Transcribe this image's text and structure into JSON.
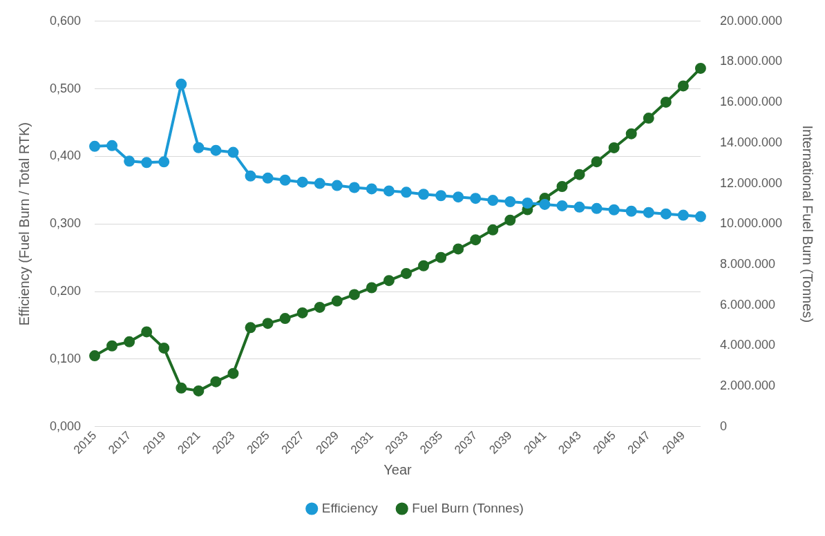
{
  "chart_data": {
    "type": "line",
    "xlabel": "Year",
    "ylabel": "Efficiency (Fuel Burn / Total RTK)",
    "y2label": "International Fuel Burn (Tonnes)",
    "categories": [
      "2015",
      null,
      "2017",
      null,
      "2019",
      null,
      "2021",
      null,
      "2023",
      null,
      "2025",
      null,
      "2027",
      null,
      "2029",
      null,
      "2031",
      null,
      "2033",
      null,
      "2035",
      null,
      "2037",
      null,
      "2039",
      null,
      "2041",
      null,
      "2043",
      null,
      "2045",
      null,
      "2047",
      null,
      "2049",
      null
    ],
    "series": [
      {
        "name": "Efficiency",
        "color": "#1b9ad6",
        "values": [
          0.415,
          0.416,
          0.393,
          0.391,
          0.392,
          0.507,
          0.413,
          0.409,
          0.406,
          0.371,
          0.368,
          0.365,
          0.362,
          0.36,
          0.357,
          0.354,
          0.352,
          0.349,
          0.347,
          0.344,
          0.342,
          0.34,
          0.338,
          0.335,
          0.333,
          0.331,
          0.329,
          0.327,
          0.325,
          0.323,
          0.321,
          0.319,
          0.317,
          0.315,
          0.313,
          0.311
        ]
      },
      {
        "name": "Fuel Burn (Tonnes)",
        "color": "#1e6b23",
        "axis": "y2",
        "values": [
          3500000,
          3990000,
          4190000,
          4680000,
          3880000,
          1910000,
          1770000,
          2220000,
          2630000,
          4890000,
          5100000,
          5340000,
          5620000,
          5890000,
          6200000,
          6520000,
          6860000,
          7210000,
          7560000,
          7940000,
          8350000,
          8770000,
          9220000,
          9710000,
          10190000,
          10710000,
          11270000,
          11850000,
          12440000,
          13070000,
          13760000,
          14450000,
          15220000,
          16010000,
          16810000,
          17680000
        ]
      }
    ],
    "ylim": [
      0,
      0.6
    ],
    "yticks": [
      {
        "value": 0,
        "label": "0,000"
      },
      {
        "value": 0.1,
        "label": "0,100"
      },
      {
        "value": 0.2,
        "label": "0,200"
      },
      {
        "value": 0.3,
        "label": "0,300"
      },
      {
        "value": 0.4,
        "label": "0,400"
      },
      {
        "value": 0.5,
        "label": "0,500"
      },
      {
        "value": 0.6,
        "label": "0,600"
      }
    ],
    "y2lim": [
      0,
      20000000
    ],
    "y2ticks": [
      0,
      {
        "value": 2000000,
        "label": "2.000.000"
      },
      {
        "value": 4000000,
        "label": "4.000.000"
      },
      {
        "value": 6000000,
        "label": "6.000.000"
      },
      {
        "value": 8000000,
        "label": "8.000.000"
      },
      {
        "value": 10000000,
        "label": "10.000.000"
      },
      {
        "value": 12000000,
        "label": "12.000.000"
      },
      {
        "value": 14000000,
        "label": "14.000.000"
      },
      {
        "value": 16000000,
        "label": "16.000.000"
      },
      {
        "value": 18000000,
        "label": "18.000.000"
      },
      {
        "value": 20000000,
        "label": "20.000.000"
      }
    ],
    "grid": "y",
    "legend": "bottom",
    "marker": "circle",
    "line_style": "solid"
  }
}
